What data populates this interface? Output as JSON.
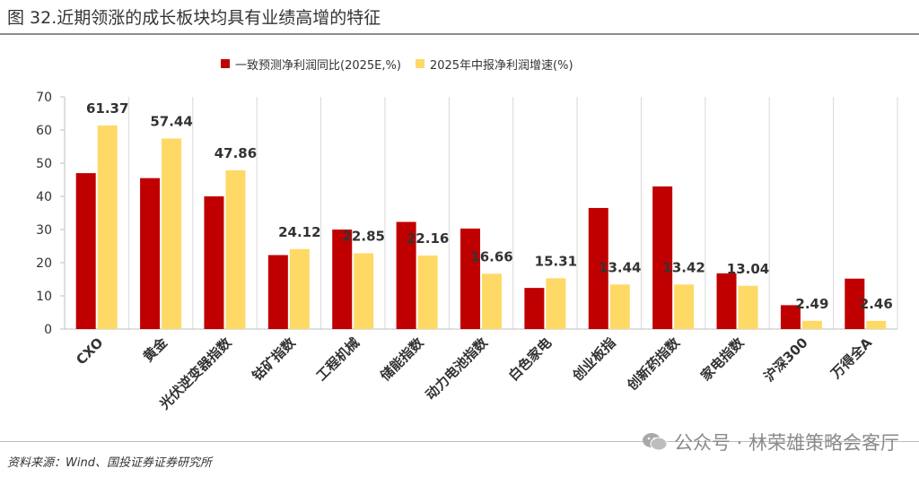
{
  "title": "图 32.近期领涨的成长板块均具有业绩高增的特征",
  "source": "资料来源：Wind、国投证券证券研究所",
  "watermark": "公众号 · 林荣雄策略会客厅",
  "colors": {
    "series1": "#c00000",
    "series2": "#ffd966"
  },
  "chart_data": {
    "type": "bar",
    "categories": [
      "CXO",
      "黄金",
      "光伏逆变器指数",
      "钴矿指数",
      "工程机械",
      "储能指数",
      "动力电池指数",
      "白色家电",
      "创业板指",
      "创新药指数",
      "家电指数",
      "沪深300",
      "万得全A"
    ],
    "series": [
      {
        "name": "一致预测净利润同比(2025E,%)",
        "values": [
          47,
          45.5,
          40,
          22.3,
          30,
          32.3,
          30.3,
          12.4,
          36.5,
          43,
          16.8,
          7.2,
          15.2
        ]
      },
      {
        "name": "2025年中报净利润增速(%)",
        "values": [
          61.37,
          57.44,
          47.86,
          24.12,
          22.85,
          22.16,
          16.66,
          15.31,
          13.44,
          13.42,
          13.04,
          2.49,
          2.46
        ]
      }
    ],
    "data_labels": [
      "61.37",
      "57.44",
      "47.86",
      "24.12",
      "22.85",
      "22.16",
      "16.66",
      "15.31",
      "13.44",
      "13.42",
      "13.04",
      "2.49",
      "2.46"
    ],
    "yticks": [
      "0",
      "10",
      "20",
      "30",
      "40",
      "50",
      "60",
      "70"
    ],
    "ylim": [
      0,
      70
    ],
    "legend_position": "top"
  }
}
